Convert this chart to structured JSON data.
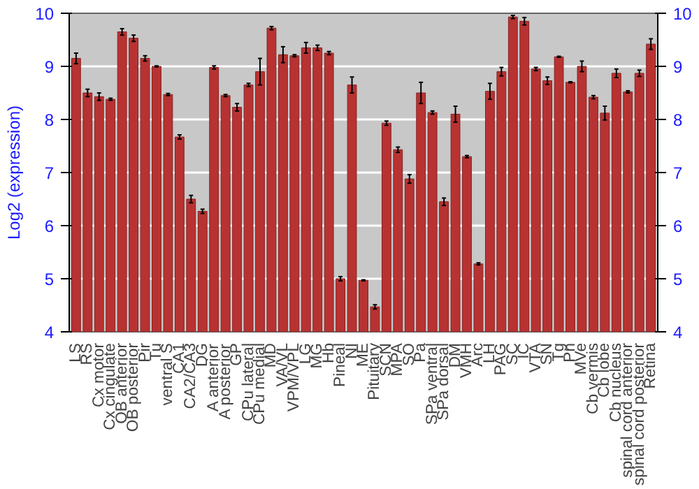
{
  "chart_data": {
    "type": "bar",
    "ylabel": "Log2 (expression)",
    "categories": [
      "LS",
      "RS",
      "Cx motor",
      "Cx cingulate",
      "OB anterior",
      "OB posterior",
      "Pir",
      "Tu",
      "ventral S",
      "CA1",
      "CA2/CA3",
      "DG",
      "A anterior",
      "A posterior",
      "GP",
      "CPu lateral",
      "CPu medial",
      "MD",
      "VA/VL",
      "VPM/VPL",
      "LG",
      "MG",
      "Hb",
      "Pineal",
      "NI",
      "ME",
      "Pituitary",
      "SCN",
      "MPA",
      "SO",
      "Pa",
      "SPa ventral",
      "SPa dorsal",
      "DM",
      "VMH",
      "Arc",
      "LH",
      "PAG",
      "SC",
      "IC",
      "VTA",
      "SN",
      "Tg",
      "Pn",
      "MVe",
      "Cb vermis",
      "Cb lobe",
      "Cb nucleus",
      "spinal cord anterior",
      "spinal cord posterior",
      "Retina"
    ],
    "values": [
      9.15,
      8.5,
      8.43,
      8.38,
      9.65,
      9.53,
      9.15,
      9.0,
      8.47,
      7.67,
      6.5,
      6.27,
      8.98,
      8.45,
      8.23,
      8.65,
      8.9,
      9.72,
      9.22,
      9.2,
      9.35,
      9.35,
      9.25,
      5.0,
      8.65,
      4.97,
      4.47,
      7.93,
      7.43,
      6.88,
      8.5,
      8.13,
      6.45,
      8.1,
      7.3,
      5.28,
      8.53,
      8.9,
      9.93,
      9.85,
      8.95,
      8.73,
      9.18,
      8.7,
      9.0,
      8.42,
      8.12,
      8.87,
      8.52,
      8.87,
      9.42
    ],
    "errors": [
      0.1,
      0.07,
      0.07,
      0.02,
      0.06,
      0.06,
      0.05,
      0.01,
      0.02,
      0.04,
      0.07,
      0.04,
      0.03,
      0.02,
      0.07,
      0.03,
      0.25,
      0.03,
      0.15,
      0.02,
      0.1,
      0.05,
      0.03,
      0.04,
      0.15,
      0.01,
      0.04,
      0.04,
      0.05,
      0.08,
      0.2,
      0.03,
      0.07,
      0.15,
      0.02,
      0.02,
      0.15,
      0.08,
      0.03,
      0.07,
      0.03,
      0.07,
      0.01,
      0.01,
      0.1,
      0.03,
      0.13,
      0.08,
      0.02,
      0.06,
      0.1
    ],
    "color": "#b83232",
    "ylim": [
      4,
      10
    ],
    "yticks": [
      4,
      5,
      6,
      7,
      8,
      9,
      10
    ],
    "y2lim": [
      4,
      10
    ],
    "y2ticks": [
      4,
      5,
      6,
      7,
      8,
      9,
      10
    ],
    "grid": "y"
  }
}
